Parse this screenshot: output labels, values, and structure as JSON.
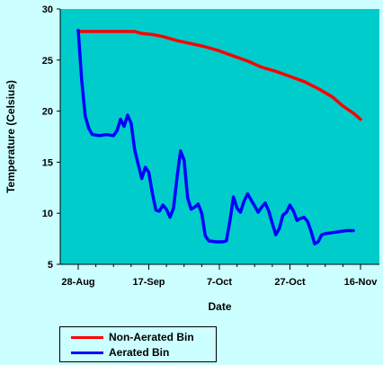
{
  "chart_data": {
    "type": "line",
    "xlabel": "Date",
    "ylabel": "Temperature (Celsius)",
    "x_axis_type": "date",
    "xlim": [
      "2000-08-28",
      "2000-11-16"
    ],
    "ylim": [
      5,
      30
    ],
    "y_ticks": [
      5,
      10,
      15,
      20,
      25,
      30
    ],
    "x_ticks": [
      "2000-08-28",
      "2000-09-17",
      "2000-10-07",
      "2000-10-27",
      "2000-11-16"
    ],
    "x_tick_labels": [
      "28-Aug",
      "17-Sep",
      "7-Oct",
      "27-Oct",
      "16-Nov"
    ],
    "grid": false,
    "plot_background": "#00cccc",
    "legend_position": "bottom-left",
    "series": [
      {
        "name": "Non-Aerated Bin",
        "color": "#ff0000",
        "points": [
          [
            "2000-08-28",
            27.8
          ],
          [
            "2000-09-01",
            27.8
          ],
          [
            "2000-09-05",
            27.8
          ],
          [
            "2000-09-09",
            27.8
          ],
          [
            "2000-09-13",
            27.8
          ],
          [
            "2000-09-14",
            27.7
          ],
          [
            "2000-09-15",
            27.6
          ],
          [
            "2000-09-18",
            27.5
          ],
          [
            "2000-09-21",
            27.3
          ],
          [
            "2000-09-25",
            26.9
          ],
          [
            "2000-09-29",
            26.6
          ],
          [
            "2000-10-03",
            26.3
          ],
          [
            "2000-10-07",
            25.9
          ],
          [
            "2000-10-11",
            25.4
          ],
          [
            "2000-10-15",
            24.9
          ],
          [
            "2000-10-19",
            24.3
          ],
          [
            "2000-10-23",
            23.9
          ],
          [
            "2000-10-27",
            23.4
          ],
          [
            "2000-10-31",
            22.9
          ],
          [
            "2000-11-04",
            22.2
          ],
          [
            "2000-11-08",
            21.4
          ],
          [
            "2000-11-11",
            20.5
          ],
          [
            "2000-11-14",
            19.8
          ],
          [
            "2000-11-16",
            19.2
          ]
        ]
      },
      {
        "name": "Aerated Bin",
        "color": "#0000ff",
        "points": [
          [
            "2000-08-28",
            27.9
          ],
          [
            "2000-08-29",
            23.0
          ],
          [
            "2000-08-30",
            19.5
          ],
          [
            "2000-08-31",
            18.3
          ],
          [
            "2000-09-01",
            17.7
          ],
          [
            "2000-09-03",
            17.6
          ],
          [
            "2000-09-05",
            17.7
          ],
          [
            "2000-09-07",
            17.6
          ],
          [
            "2000-09-08",
            18.1
          ],
          [
            "2000-09-09",
            19.2
          ],
          [
            "2000-09-10",
            18.5
          ],
          [
            "2000-09-11",
            19.6
          ],
          [
            "2000-09-12",
            18.8
          ],
          [
            "2000-09-13",
            16.2
          ],
          [
            "2000-09-14",
            14.8
          ],
          [
            "2000-09-15",
            13.4
          ],
          [
            "2000-09-16",
            14.5
          ],
          [
            "2000-09-17",
            14.0
          ],
          [
            "2000-09-18",
            12.0
          ],
          [
            "2000-09-19",
            10.3
          ],
          [
            "2000-09-20",
            10.2
          ],
          [
            "2000-09-21",
            10.8
          ],
          [
            "2000-09-22",
            10.4
          ],
          [
            "2000-09-23",
            9.6
          ],
          [
            "2000-09-24",
            10.5
          ],
          [
            "2000-09-25",
            13.5
          ],
          [
            "2000-09-26",
            16.1
          ],
          [
            "2000-09-27",
            15.2
          ],
          [
            "2000-09-28",
            11.5
          ],
          [
            "2000-09-29",
            10.4
          ],
          [
            "2000-09-30",
            10.6
          ],
          [
            "2000-10-01",
            10.9
          ],
          [
            "2000-10-02",
            10.0
          ],
          [
            "2000-10-03",
            7.8
          ],
          [
            "2000-10-04",
            7.3
          ],
          [
            "2000-10-06",
            7.2
          ],
          [
            "2000-10-08",
            7.2
          ],
          [
            "2000-10-09",
            7.3
          ],
          [
            "2000-10-10",
            9.3
          ],
          [
            "2000-10-11",
            11.6
          ],
          [
            "2000-10-12",
            10.5
          ],
          [
            "2000-10-13",
            10.1
          ],
          [
            "2000-10-14",
            11.2
          ],
          [
            "2000-10-15",
            11.9
          ],
          [
            "2000-10-16",
            11.3
          ],
          [
            "2000-10-17",
            10.7
          ],
          [
            "2000-10-18",
            10.1
          ],
          [
            "2000-10-19",
            10.6
          ],
          [
            "2000-10-20",
            11.0
          ],
          [
            "2000-10-21",
            10.2
          ],
          [
            "2000-10-22",
            9.0
          ],
          [
            "2000-10-23",
            7.9
          ],
          [
            "2000-10-24",
            8.5
          ],
          [
            "2000-10-25",
            9.8
          ],
          [
            "2000-10-26",
            10.1
          ],
          [
            "2000-10-27",
            10.8
          ],
          [
            "2000-10-28",
            10.2
          ],
          [
            "2000-10-29",
            9.3
          ],
          [
            "2000-10-30",
            9.5
          ],
          [
            "2000-10-31",
            9.6
          ],
          [
            "2000-11-01",
            9.2
          ],
          [
            "2000-11-02",
            8.2
          ],
          [
            "2000-11-03",
            7.0
          ],
          [
            "2000-11-04",
            7.2
          ],
          [
            "2000-11-05",
            7.9
          ],
          [
            "2000-11-06",
            8.0
          ],
          [
            "2000-11-08",
            8.1
          ],
          [
            "2000-11-10",
            8.2
          ],
          [
            "2000-11-12",
            8.3
          ],
          [
            "2000-11-14",
            8.3
          ]
        ]
      }
    ]
  }
}
